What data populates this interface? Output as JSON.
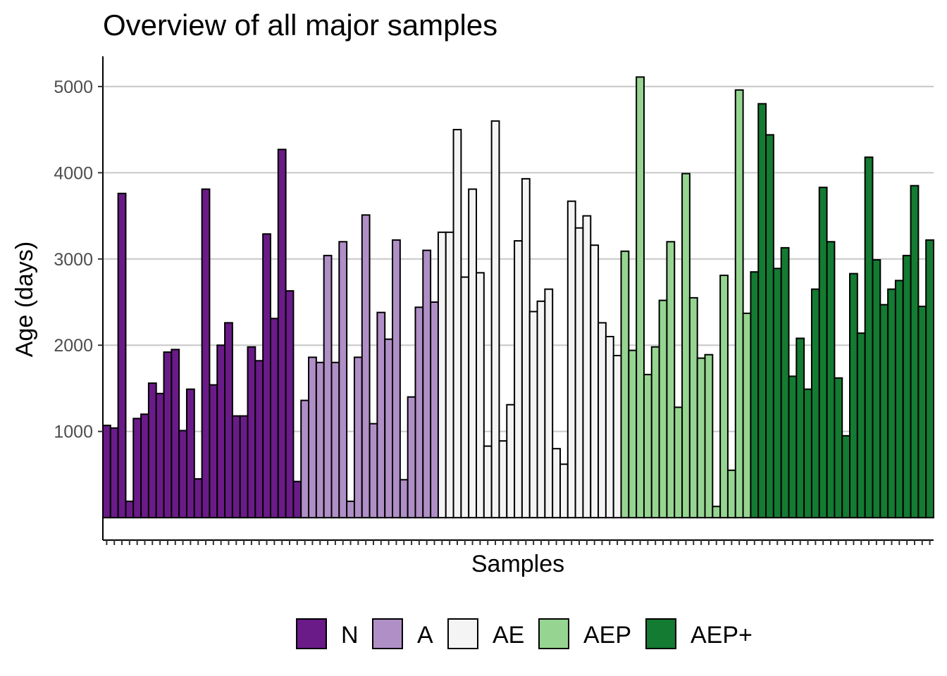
{
  "chart_data": {
    "type": "bar",
    "title": "Overview of all major samples",
    "xlabel": "Samples",
    "ylabel": "Age (days)",
    "ylim": [
      -260,
      5350
    ],
    "yticks": [
      1000,
      2000,
      3000,
      4000,
      5000
    ],
    "ytick_labels": [
      "1000",
      "2000",
      "3000",
      "4000",
      "5000"
    ],
    "grid": "horizontal major lines",
    "legend_position": "bottom",
    "legend": [
      {
        "label": "N",
        "color": "#6a1b88"
      },
      {
        "label": "A",
        "color": "#b08fc7"
      },
      {
        "label": "AE",
        "color": "#f4f4f4"
      },
      {
        "label": "AEP",
        "color": "#96d591"
      },
      {
        "label": "AEP+",
        "color": "#137b32"
      }
    ],
    "series": [
      {
        "group": "N",
        "values": [
          1070,
          1040,
          3760,
          190,
          1150,
          1200,
          1560,
          1440,
          1920,
          1950,
          1010,
          1490,
          450,
          3810,
          1540,
          2000,
          2260,
          1180,
          1180,
          1980,
          1820,
          3290,
          2310,
          4270,
          2630,
          420
        ]
      },
      {
        "group": "A",
        "values": [
          1360,
          1860,
          1800,
          3040,
          1800,
          3200,
          190,
          1860,
          3510,
          1090,
          2380,
          2070,
          3220,
          440,
          1400,
          2440,
          3100,
          2500
        ]
      },
      {
        "group": "AE",
        "values": [
          3310,
          3310,
          4500,
          2790,
          3810,
          2840,
          830,
          4600,
          890,
          1310,
          3210,
          3930,
          2390,
          2510,
          2650,
          800,
          620,
          3670,
          3360,
          3500,
          3160,
          2260,
          2100,
          1880
        ]
      },
      {
        "group": "AEP",
        "values": [
          3090,
          1940,
          5110,
          1660,
          1980,
          2520,
          3200,
          1280,
          3990,
          2550,
          1850,
          1890,
          130,
          2810,
          550,
          4960,
          2370
        ]
      },
      {
        "group": "AEP+",
        "values": [
          2850,
          4800,
          4440,
          2890,
          3130,
          1640,
          2080,
          1490,
          2650,
          3830,
          3200,
          1620,
          950,
          2830,
          2140,
          4180,
          2990,
          2470,
          2650,
          2750,
          3040,
          3850,
          2450,
          3220
        ]
      }
    ]
  }
}
